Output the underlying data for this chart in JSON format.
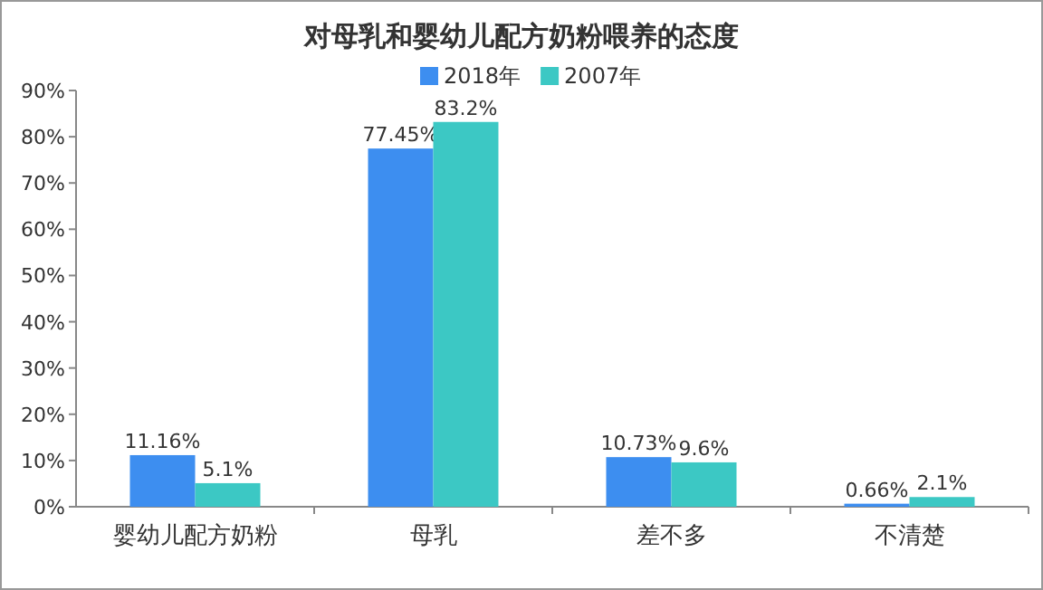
{
  "chart_data": {
    "type": "bar",
    "title": "对母乳和婴幼儿配方奶粉喂养的态度",
    "categories": [
      "婴幼儿配方奶粉",
      "母乳",
      "差不多",
      "不清楚"
    ],
    "series": [
      {
        "name": "2018年",
        "color": "#3d8ef0",
        "values": [
          11.16,
          77.45,
          10.73,
          0.66
        ],
        "value_labels": [
          "11.16%",
          "77.45%",
          "10.73%",
          "0.66%"
        ]
      },
      {
        "name": "2007年",
        "color": "#3cc8c4",
        "values": [
          5.1,
          83.2,
          9.6,
          2.1
        ],
        "value_labels": [
          "5.1%",
          "83.2%",
          "9.6%",
          "2.1%"
        ]
      }
    ],
    "ylim": [
      0,
      90
    ],
    "yticks": [
      {
        "value": 0,
        "label": "0%"
      },
      {
        "value": 10,
        "label": "10%"
      },
      {
        "value": 20,
        "label": "20%"
      },
      {
        "value": 30,
        "label": "30%"
      },
      {
        "value": 40,
        "label": "40%"
      },
      {
        "value": 50,
        "label": "50%"
      },
      {
        "value": 60,
        "label": "60%"
      },
      {
        "value": 70,
        "label": "70%"
      },
      {
        "value": 80,
        "label": "80%"
      },
      {
        "value": 90,
        "label": "90%"
      }
    ],
    "legend": "top",
    "grid": false
  }
}
